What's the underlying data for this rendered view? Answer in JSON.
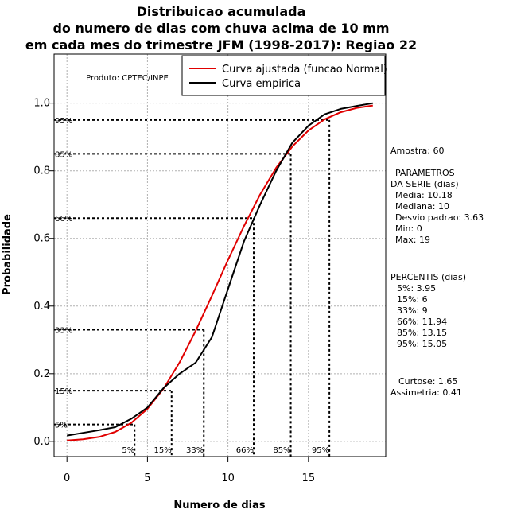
{
  "chart_data": {
    "type": "line",
    "title_lines": [
      "Distribuicao acumulada",
      "do numero de dias com chuva acima de 10 mm",
      "em cada mes do trimestre JFM (1998-2017): Regiao 22"
    ],
    "xlabel": "Numero de dias",
    "ylabel": "Probabilidade",
    "xlim": [
      -0.8,
      19.8
    ],
    "ylim": [
      -0.045,
      1.145
    ],
    "x_ticks": [
      0,
      5,
      10,
      15
    ],
    "x_tick_labels": [
      "0",
      "5",
      "10",
      "15"
    ],
    "y_ticks": [
      0.0,
      0.2,
      0.4,
      0.6,
      0.8,
      1.0
    ],
    "y_tick_labels": [
      "0.0",
      "0.2",
      "0.4",
      "0.6",
      "0.8",
      "1.0"
    ],
    "grid": true,
    "credit": "Produto: CPTEC/INPE",
    "legend_position": "top-right",
    "series": [
      {
        "name": "Curva ajustada (funcao Normal)",
        "color": "#e00000",
        "x": [
          0,
          1,
          2,
          3,
          4,
          5,
          6,
          7,
          8,
          9,
          10,
          11,
          12,
          13,
          14,
          15,
          16,
          17,
          18,
          19
        ],
        "y": [
          0.0025,
          0.006,
          0.013,
          0.028,
          0.055,
          0.096,
          0.156,
          0.234,
          0.327,
          0.43,
          0.536,
          0.637,
          0.73,
          0.809,
          0.872,
          0.919,
          0.952,
          0.973,
          0.986,
          0.993
        ]
      },
      {
        "name": "Curva empirica",
        "color": "#000000",
        "x": [
          0,
          1,
          2,
          3,
          4,
          5,
          6,
          7,
          8,
          9,
          10,
          11,
          12,
          13,
          14,
          15,
          16,
          17,
          18,
          19
        ],
        "y": [
          0.017,
          0.025,
          0.033,
          0.042,
          0.067,
          0.1,
          0.158,
          0.2,
          0.233,
          0.308,
          0.45,
          0.592,
          0.7,
          0.8,
          0.883,
          0.933,
          0.967,
          0.983,
          0.992,
          1.0
        ]
      }
    ],
    "percentile_markers": [
      {
        "label": "5%",
        "prob": 0.05,
        "value": 3.95
      },
      {
        "label": "15%",
        "prob": 0.15,
        "value": 6
      },
      {
        "label": "33%",
        "prob": 0.33,
        "value": 9
      },
      {
        "label": "66%",
        "prob": 0.66,
        "value": 11.94
      },
      {
        "label": "85%",
        "prob": 0.85,
        "value": 13.15
      },
      {
        "label": "95%",
        "prob": 0.95,
        "value": 15.05
      }
    ],
    "marker_x_positions": [
      4.2,
      6.5,
      8.5,
      11.6,
      13.9,
      16.3
    ]
  },
  "side_panel": {
    "amostra": "Amostra: 60",
    "params_heading_1": "PARAMETROS",
    "params_heading_2": "DA SERIE (dias)",
    "media": "Media: 10.18",
    "mediana": "Mediana: 10",
    "desvio": "Desvio padrao: 3.63",
    "min": "Min: 0",
    "max": "Max: 19",
    "percentis_heading": "PERCENTIS (dias)",
    "p5": "5%: 3.95",
    "p15": "15%: 6",
    "p33": "33%: 9",
    "p66": "66%: 11.94",
    "p85": "85%: 13.15",
    "p95": "95%: 15.05",
    "curtose": "Curtose: 1.65",
    "assimetria": "Assimetria: 0.41"
  }
}
